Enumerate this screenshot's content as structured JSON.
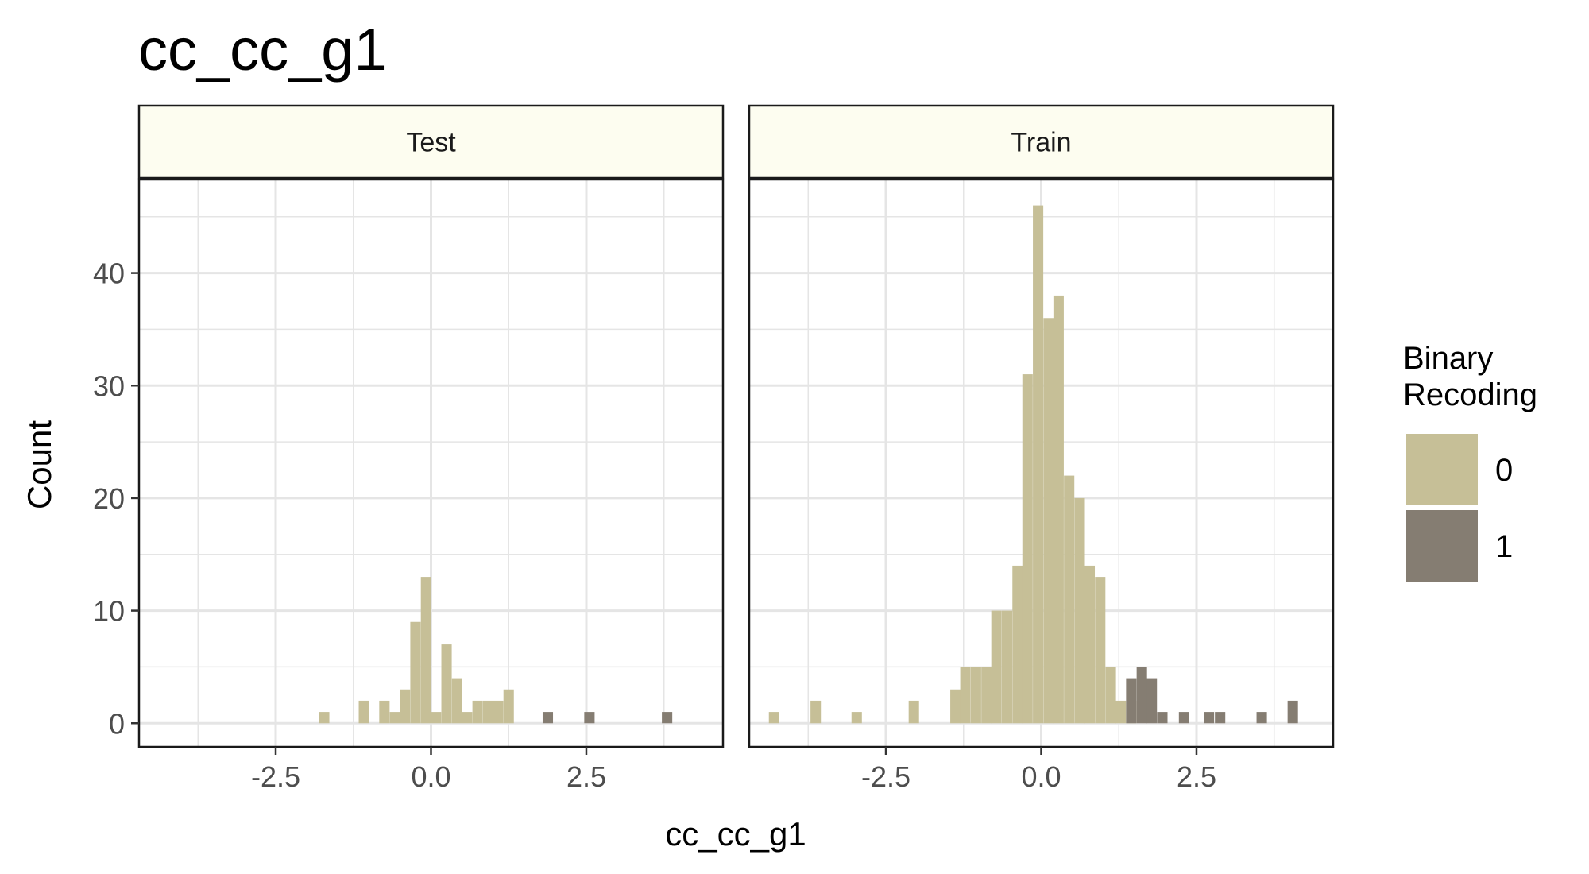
{
  "chart_data": {
    "type": "bar",
    "subtype": "faceted-histogram",
    "title": "cc_cc_g1",
    "xlabel": "cc_cc_g1",
    "ylabel": "Count",
    "xlim": [
      -4.7,
      4.7
    ],
    "ylim": [
      -2.1,
      48.3
    ],
    "bin_width": 0.167,
    "x_ticks": [
      -2.5,
      0.0,
      2.5
    ],
    "x_tick_labels": [
      "-2.5",
      "0.0",
      "2.5"
    ],
    "y_ticks": [
      0,
      10,
      20,
      30,
      40
    ],
    "y_tick_labels": [
      "0",
      "10",
      "20",
      "30",
      "40"
    ],
    "grid": true,
    "legend": {
      "title": "Binary Recoding",
      "title_lines": [
        "Binary",
        "Recoding"
      ],
      "placement": "right",
      "entries": [
        {
          "label": "0",
          "color": "#c6bf97"
        },
        {
          "label": "1",
          "color": "#857d72"
        }
      ]
    },
    "colors": {
      "0": "#c6bf97",
      "1": "#857d72",
      "strip_fill": "#fdfdf0",
      "grid": "#e5e5e5"
    },
    "facets": [
      {
        "name": "Test",
        "series": [
          {
            "name": "0",
            "x": [
              -1.72,
              -1.08,
              -0.75,
              -0.58,
              -0.42,
              -0.25,
              -0.08,
              0.08,
              0.25,
              0.42,
              0.58,
              0.75,
              0.92,
              1.08,
              1.25
            ],
            "values": [
              1,
              2,
              2,
              1,
              3,
              9,
              13,
              1,
              7,
              4,
              1,
              2,
              2,
              2,
              3
            ]
          },
          {
            "name": "1",
            "x": [
              1.88,
              2.55,
              3.8
            ],
            "values": [
              1,
              1,
              1
            ]
          }
        ]
      },
      {
        "name": "Train",
        "series": [
          {
            "name": "0",
            "x": [
              -4.3,
              -3.63,
              -2.97,
              -2.05,
              -1.38,
              -1.22,
              -1.05,
              -0.88,
              -0.72,
              -0.55,
              -0.38,
              -0.22,
              -0.05,
              0.12,
              0.28,
              0.45,
              0.62,
              0.78,
              0.95,
              1.12,
              1.28,
              1.45
            ],
            "values": [
              1,
              2,
              1,
              2,
              3,
              5,
              5,
              5,
              10,
              10,
              14,
              31,
              46,
              36,
              38,
              22,
              20,
              14,
              13,
              5,
              2,
              2
            ]
          },
          {
            "name": "1",
            "x": [
              1.45,
              1.62,
              1.78,
              1.95,
              2.3,
              2.7,
              2.88,
              3.55,
              4.05
            ],
            "values": [
              4,
              5,
              4,
              1,
              1,
              1,
              1,
              1,
              2
            ]
          }
        ]
      }
    ]
  }
}
